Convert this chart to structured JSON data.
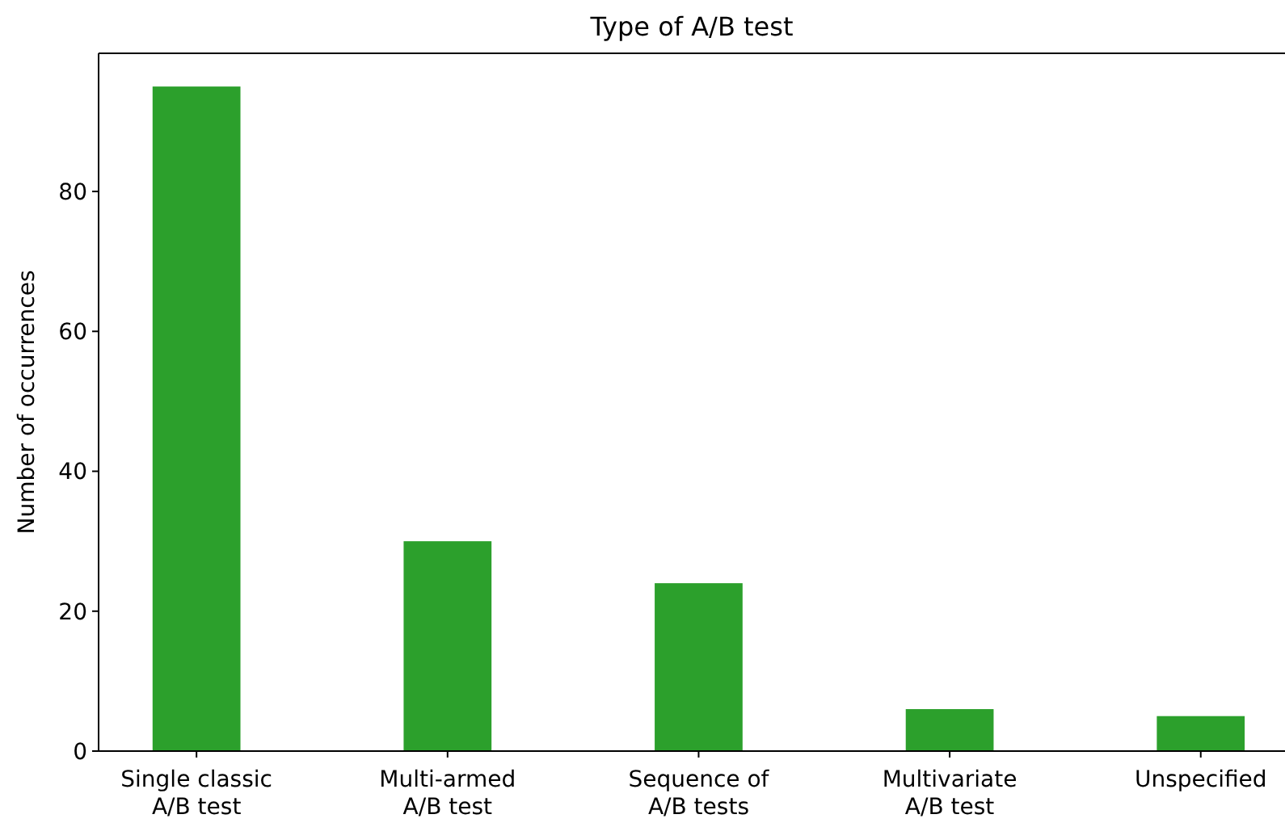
{
  "chart_data": {
    "type": "bar",
    "title": "Type of A/B test",
    "ylabel": "Number of occurrences",
    "categories": [
      "Single classic\nA/B test",
      "Multi-armed\nA/B test",
      "Sequence of\nA/B tests",
      "Multivariate\nA/B test",
      "Unspecified"
    ],
    "values": [
      95,
      30,
      24,
      6,
      5
    ],
    "color": "#2ca02c",
    "ylim": [
      0,
      99.75
    ],
    "yticks": [
      0,
      20,
      40,
      60,
      80
    ],
    "grid": false
  }
}
